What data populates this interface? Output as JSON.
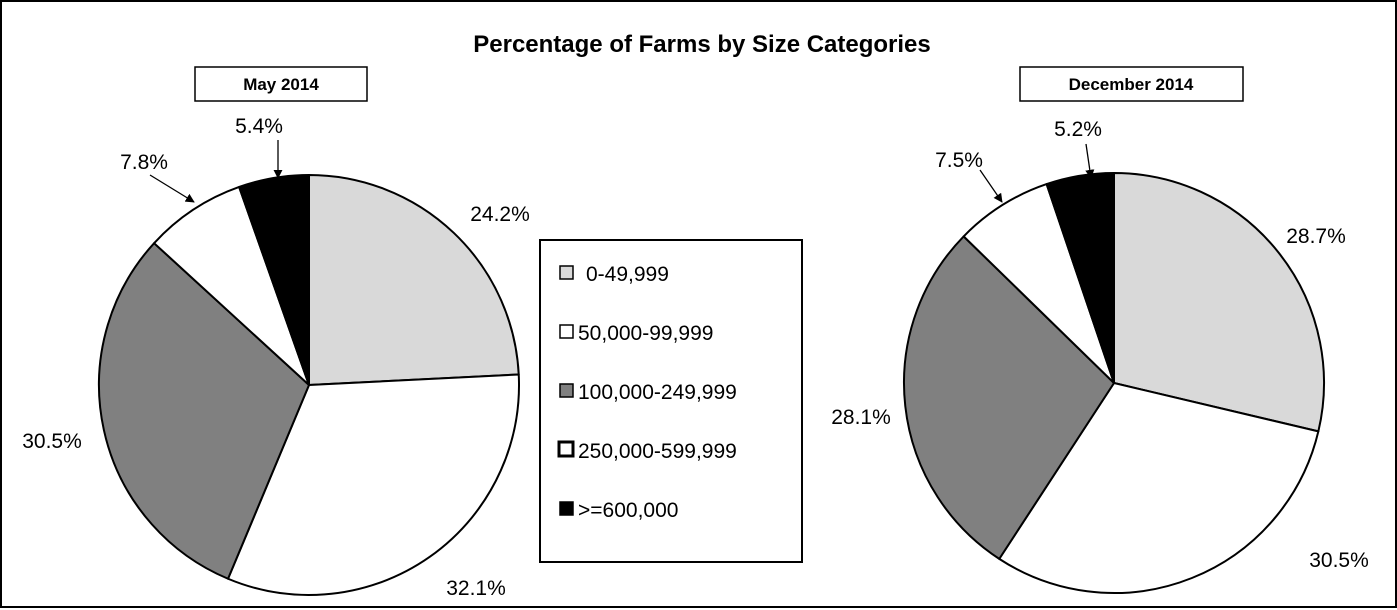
{
  "chart_data": {
    "type": "pie",
    "title": "Percentage of Farms by Size Categories",
    "legend": {
      "placement": "center",
      "entries": [
        {
          "name": "0-49,999",
          "color": "#d9d9d9"
        },
        {
          "name": "50,000-99,999",
          "color": "#ffffff"
        },
        {
          "name": "100,000-249,999",
          "color": "#808080"
        },
        {
          "name": "250,000-599,999",
          "color": "#ffffff"
        },
        {
          "name": ">=600,000",
          "color": "#000000"
        }
      ]
    },
    "charts": [
      {
        "subtitle": "May 2014",
        "slices": [
          {
            "category": "0-49,999",
            "value": 24.2,
            "label": "24.2%"
          },
          {
            "category": "50,000-99,999",
            "value": 32.1,
            "label": "32.1%"
          },
          {
            "category": "100,000-249,999",
            "value": 30.5,
            "label": "30.5%"
          },
          {
            "category": "250,000-599,999",
            "value": 7.8,
            "label": "7.8%"
          },
          {
            "category": ">=600,000",
            "value": 5.4,
            "label": "5.4%"
          }
        ]
      },
      {
        "subtitle": "December 2014",
        "slices": [
          {
            "category": "0-49,999",
            "value": 28.7,
            "label": "28.7%"
          },
          {
            "category": "50,000-99,999",
            "value": 30.5,
            "label": "30.5%"
          },
          {
            "category": "100,000-249,999",
            "value": 28.1,
            "label": "28.1%"
          },
          {
            "category": "250,000-599,999",
            "value": 7.5,
            "label": "7.5%"
          },
          {
            "category": ">=600,000",
            "value": 5.2,
            "label": "5.2%"
          }
        ]
      }
    ]
  }
}
